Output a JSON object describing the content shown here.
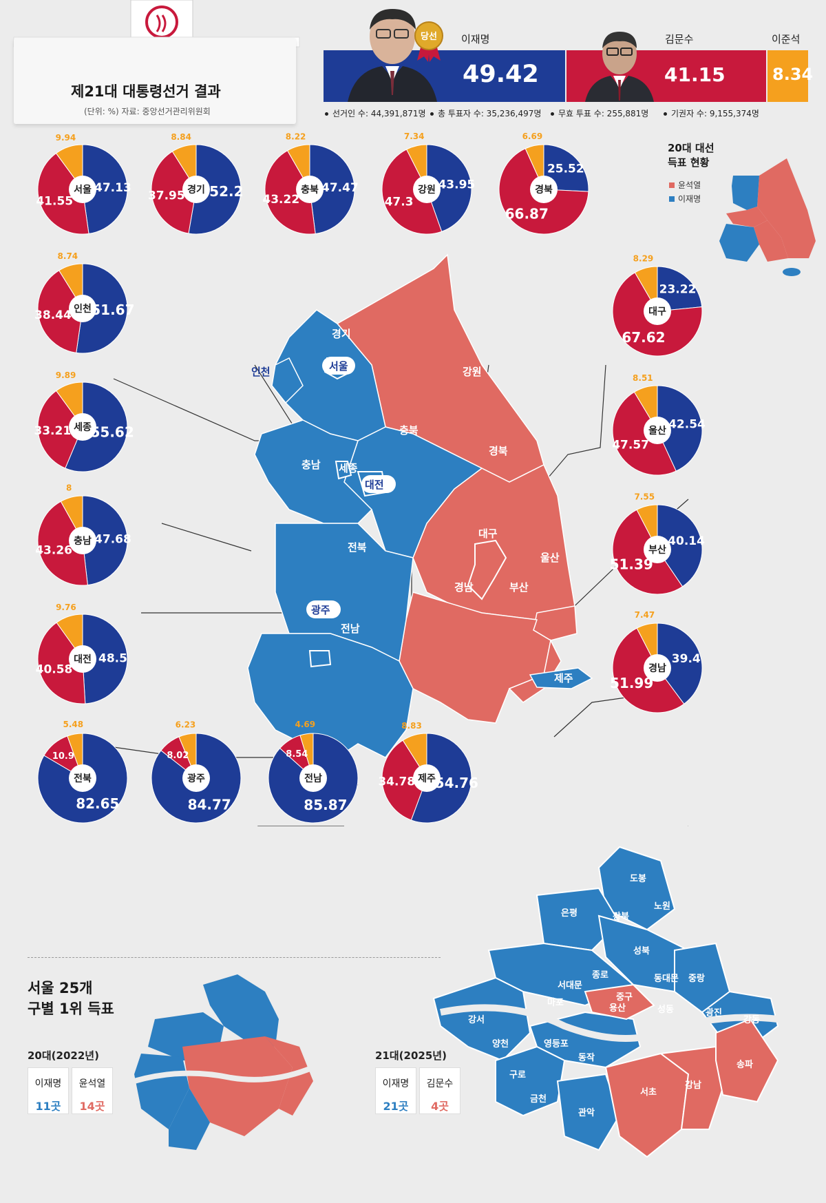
{
  "header": {
    "title": "제21대 대통령선거 결과",
    "source": "(단위: %)    자료: 중앙선거관리위원회",
    "winner_badge": "당선"
  },
  "national": {
    "candidates": [
      {
        "name": "이재명",
        "value": "49.42",
        "color": "#1e3c96"
      },
      {
        "name": "김문수",
        "value": "41.15",
        "color": "#c8193c"
      },
      {
        "name": "이준석",
        "value": "8.34",
        "color": "#f5a01e"
      }
    ],
    "stats": [
      "선거인 수: 44,391,871명",
      "총 투표자 수: 35,236,497명",
      "무효 투표 수: 255,881명",
      "기권자 수: 9,155,374명"
    ]
  },
  "legend20": {
    "title_1": "20대 대선",
    "title_2": "득표 현황",
    "yoon": "윤석열",
    "lee": "이재명"
  },
  "map_labels": [
    "경기",
    "서울",
    "인천",
    "강원",
    "충북",
    "경북",
    "세종",
    "충남",
    "대전",
    "대구",
    "전북",
    "울산",
    "경남",
    "부산",
    "광주",
    "전남",
    "제주"
  ],
  "chart_data": {
    "type": "pie",
    "note_series": [
      "이재명",
      "김문수",
      "이준석"
    ],
    "colors": {
      "이재명": "#1e3c96",
      "김문수": "#c8193c",
      "이준석": "#f5a01e"
    },
    "regions": [
      {
        "name": "서울",
        "이재명": 47.13,
        "김문수": 41.55,
        "이준석": 9.94
      },
      {
        "name": "경기",
        "이재명": 52.2,
        "김문수": 37.95,
        "이준석": 8.84
      },
      {
        "name": "충북",
        "이재명": 47.47,
        "김문수": 43.22,
        "이준석": 8.22
      },
      {
        "name": "강원",
        "이재명": 43.95,
        "김문수": 47.3,
        "이준석": 7.34
      },
      {
        "name": "경북",
        "이재명": 25.52,
        "김문수": 66.87,
        "이준석": 6.69
      },
      {
        "name": "인천",
        "이재명": 51.67,
        "김문수": 38.44,
        "이준석": 8.74
      },
      {
        "name": "대구",
        "이재명": 23.22,
        "김문수": 67.62,
        "이준석": 8.29
      },
      {
        "name": "세종",
        "이재명": 55.62,
        "김문수": 33.21,
        "이준석": 9.89
      },
      {
        "name": "울산",
        "이재명": 42.54,
        "김문수": 47.57,
        "이준석": 8.51
      },
      {
        "name": "충남",
        "이재명": 47.68,
        "김문수": 43.26,
        "이준석": 8.0
      },
      {
        "name": "부산",
        "이재명": 40.14,
        "김문수": 51.39,
        "이준석": 7.55
      },
      {
        "name": "대전",
        "이재명": 48.5,
        "김문수": 40.58,
        "이준석": 9.76
      },
      {
        "name": "경남",
        "이재명": 39.4,
        "김문수": 51.99,
        "이준석": 7.47
      },
      {
        "name": "전북",
        "이재명": 82.65,
        "김문수": 10.9,
        "이준석": 5.48
      },
      {
        "name": "광주",
        "이재명": 84.77,
        "김문수": 8.02,
        "이준석": 6.23
      },
      {
        "name": "전남",
        "이재명": 85.87,
        "김문수": 8.54,
        "이준석": 4.69
      },
      {
        "name": "제주",
        "이재명": 54.76,
        "김문수": 34.78,
        "이준석": 8.83
      }
    ]
  },
  "seoul": {
    "title_1": "서울 25개",
    "title_2": "구별 1위 득표",
    "era20": "20대(2022년)",
    "era21": "21대(2025년)",
    "c20a_name": "이재명",
    "c20a_val": "11곳",
    "c20b_name": "윤석열",
    "c20b_val": "14곳",
    "c21a_name": "이재명",
    "c21a_val": "21곳",
    "c21b_name": "김문수",
    "c21b_val": "4곳",
    "districts": [
      "도봉",
      "노원",
      "강북",
      "은평",
      "성북",
      "중랑",
      "종로",
      "동대문",
      "서대문",
      "마포",
      "중구",
      "성동",
      "광진",
      "강서",
      "용산",
      "강동",
      "양천",
      "영등포",
      "송파",
      "동작",
      "구로",
      "서초",
      "강남",
      "금천",
      "관악"
    ]
  }
}
